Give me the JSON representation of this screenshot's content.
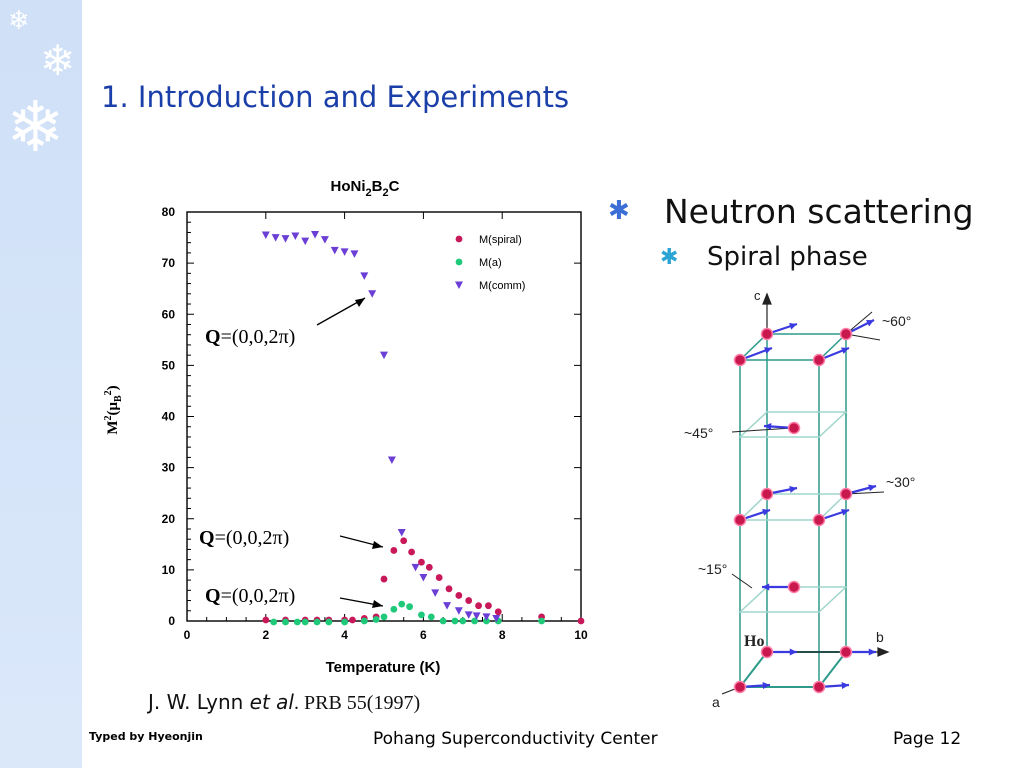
{
  "slide": {
    "title": "1. Introduction and Experiments",
    "bullet_main": "Neutron scattering",
    "bullet_sub": "Spiral phase",
    "citation_authors": "J. W. Lynn ",
    "citation_etal": "et al",
    "citation_ref": ". PRB 55(1997)",
    "typed_by": "Typed by Hyeonjin",
    "footer_center": "Pohang Superconductivity Center",
    "page": "Page 12",
    "bullet_icon": "asterisk-icon",
    "decoration_icon": "snowflake-icon"
  },
  "chart_data": {
    "type": "scatter",
    "title_parts": [
      "HoNi",
      "2",
      "B",
      "2",
      "C"
    ],
    "xlabel": "Temperature (K)",
    "ylabel_parts": [
      "M",
      "2",
      "(",
      "μ",
      "B",
      "2",
      ")"
    ],
    "xlim": [
      0,
      10
    ],
    "ylim": [
      0,
      80
    ],
    "xticks": [
      0,
      2,
      4,
      6,
      8,
      10
    ],
    "yticks": [
      0,
      10,
      20,
      30,
      40,
      50,
      60,
      70,
      80
    ],
    "grid": false,
    "legend_position": "top-right",
    "series": [
      {
        "name": "M(spiral)",
        "marker": "circle",
        "color": "#c8185a",
        "points": [
          [
            2.0,
            0.2
          ],
          [
            2.5,
            0.2
          ],
          [
            3.0,
            0.2
          ],
          [
            3.3,
            0.2
          ],
          [
            3.6,
            0.2
          ],
          [
            4.0,
            0.2
          ],
          [
            4.2,
            0.2
          ],
          [
            4.5,
            0.5
          ],
          [
            4.8,
            0.8
          ],
          [
            5.0,
            8.2
          ],
          [
            5.25,
            13.8
          ],
          [
            5.5,
            15.7
          ],
          [
            5.7,
            13.5
          ],
          [
            5.95,
            11.5
          ],
          [
            6.15,
            10.5
          ],
          [
            6.4,
            8.5
          ],
          [
            6.65,
            6.3
          ],
          [
            6.9,
            5.0
          ],
          [
            7.15,
            4.0
          ],
          [
            7.4,
            3.0
          ],
          [
            7.65,
            3.0
          ],
          [
            7.9,
            1.8
          ],
          [
            9.0,
            0.8
          ],
          [
            10.0,
            0
          ]
        ]
      },
      {
        "name": "M(a)",
        "marker": "circle",
        "color": "#1ec97a",
        "points": [
          [
            2.2,
            -0.2
          ],
          [
            2.5,
            -0.2
          ],
          [
            2.8,
            -0.2
          ],
          [
            3.0,
            -0.2
          ],
          [
            3.3,
            -0.2
          ],
          [
            3.6,
            -0.2
          ],
          [
            4.0,
            -0.2
          ],
          [
            4.5,
            0
          ],
          [
            4.8,
            0.3
          ],
          [
            5.0,
            0.8
          ],
          [
            5.25,
            2.3
          ],
          [
            5.45,
            3.3
          ],
          [
            5.65,
            2.8
          ],
          [
            5.95,
            1.2
          ],
          [
            6.2,
            0.8
          ],
          [
            6.5,
            0
          ],
          [
            6.8,
            0
          ],
          [
            7.0,
            0
          ],
          [
            7.3,
            0
          ],
          [
            7.6,
            0
          ],
          [
            7.9,
            0
          ],
          [
            9.0,
            0
          ]
        ]
      },
      {
        "name": "M(comm)",
        "marker": "triangle-down",
        "color": "#6b3ed6",
        "points": [
          [
            2.0,
            75.5
          ],
          [
            2.25,
            75.0
          ],
          [
            2.5,
            74.8
          ],
          [
            2.75,
            75.3
          ],
          [
            3.0,
            74.3
          ],
          [
            3.25,
            75.6
          ],
          [
            3.5,
            74.6
          ],
          [
            3.75,
            72.5
          ],
          [
            4.0,
            72.2
          ],
          [
            4.25,
            71.8
          ],
          [
            4.5,
            67.5
          ],
          [
            4.7,
            64.0
          ],
          [
            5.0,
            52.0
          ],
          [
            5.2,
            31.5
          ],
          [
            5.45,
            17.3
          ],
          [
            5.8,
            10.5
          ],
          [
            6.0,
            8.5
          ],
          [
            6.3,
            5.5
          ],
          [
            6.6,
            3.0
          ],
          [
            6.9,
            2.0
          ],
          [
            7.15,
            1.2
          ],
          [
            7.35,
            1.0
          ],
          [
            7.6,
            0.8
          ],
          [
            7.85,
            0.5
          ]
        ]
      }
    ],
    "annotations": [
      {
        "bold": "Q",
        "text": "=(0,0,2π)"
      },
      {
        "bold": "Q",
        "text": "=(0,0,2π)"
      },
      {
        "bold": "Q",
        "text": "=(0,0,2π)"
      }
    ]
  },
  "lattice": {
    "axis_c": "c",
    "axis_b": "b",
    "axis_a": "a",
    "atom_label": "Ho",
    "angle_60": "~60°",
    "angle_45": "~45°",
    "angle_30": "~30°",
    "angle_15": "~15°",
    "colors": {
      "frame": "#2e9a8a",
      "atom": "#c8184e",
      "spin": "#3a3ae0"
    }
  }
}
